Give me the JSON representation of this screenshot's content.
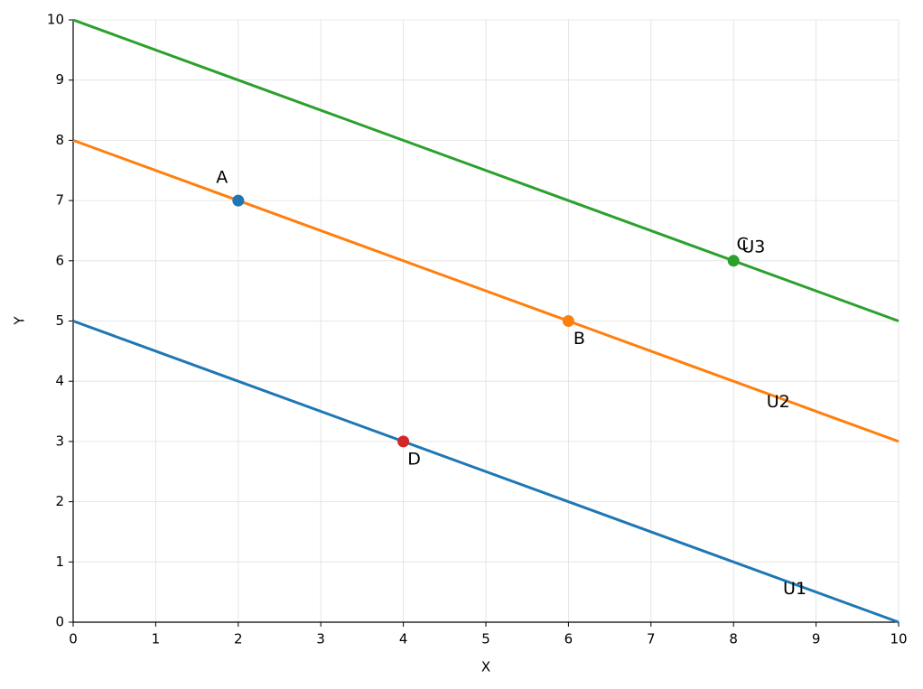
{
  "chart_data": {
    "type": "line",
    "xlabel": "X",
    "ylabel": "Y",
    "x": [
      0,
      10
    ],
    "series": [
      {
        "name": "U1",
        "color": "#1f77b4",
        "values": [
          5,
          0
        ]
      },
      {
        "name": "U2",
        "color": "#ff7f0e",
        "values": [
          8,
          3
        ]
      },
      {
        "name": "U3",
        "color": "#2ca02c",
        "values": [
          10,
          5
        ]
      }
    ],
    "points": [
      {
        "label": "A",
        "x": 2,
        "y": 7,
        "color": "#1f77b4"
      },
      {
        "label": "B",
        "x": 6,
        "y": 5,
        "color": "#ff7f0e"
      },
      {
        "label": "C",
        "x": 8,
        "y": 6,
        "color": "#2ca02c"
      },
      {
        "label": "D",
        "x": 4,
        "y": 3,
        "color": "#d62728"
      }
    ],
    "xlim": [
      0,
      10
    ],
    "ylim": [
      0,
      10
    ],
    "xticks": [
      0,
      1,
      2,
      3,
      4,
      5,
      6,
      7,
      8,
      9,
      10
    ],
    "yticks": [
      0,
      1,
      2,
      3,
      4,
      5,
      6,
      7,
      8,
      9,
      10
    ],
    "grid": true
  }
}
